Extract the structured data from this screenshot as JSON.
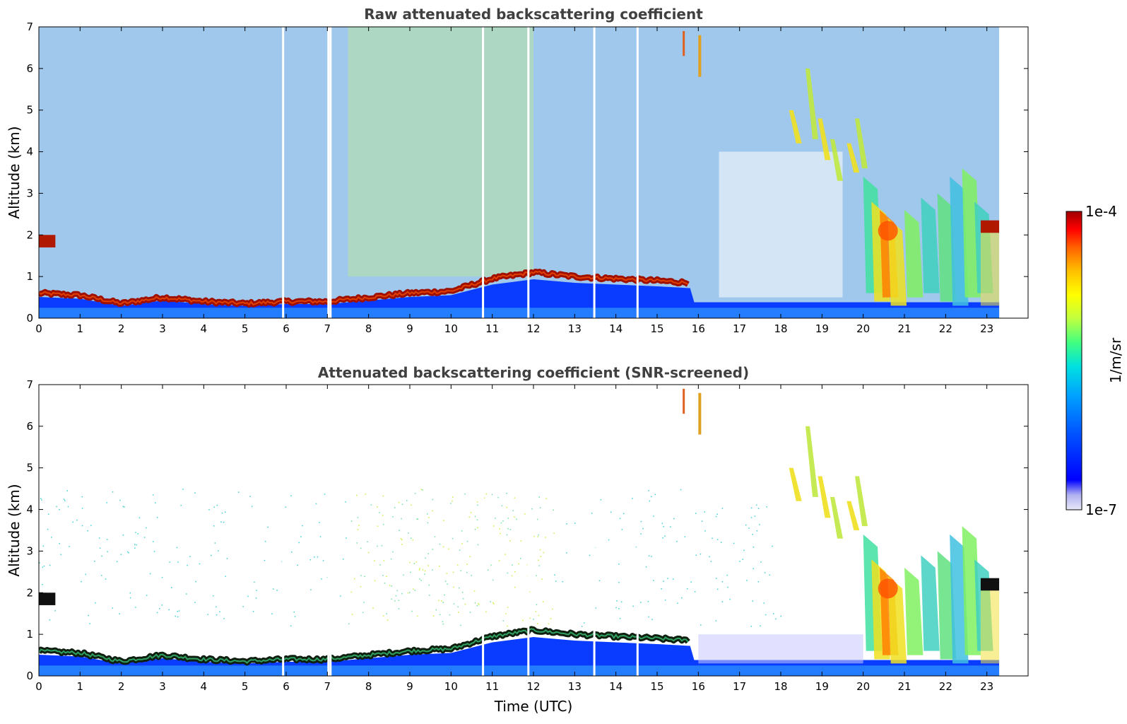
{
  "chart_data": [
    {
      "type": "heatmap",
      "title": "Raw attenuated backscattering coefficient",
      "xlabel": "",
      "ylabel": "Altitude (km)",
      "xlim": [
        0,
        24
      ],
      "ylim": [
        0,
        7
      ],
      "x_ticks": [
        "0",
        "1",
        "2",
        "3",
        "4",
        "5",
        "6",
        "7",
        "8",
        "9",
        "10",
        "11",
        "12",
        "13",
        "14",
        "15",
        "16",
        "17",
        "18",
        "19",
        "20",
        "21",
        "22",
        "23"
      ],
      "y_ticks": [
        "0",
        "1",
        "2",
        "3",
        "4",
        "5",
        "6",
        "7"
      ],
      "data_end_time": 23.3,
      "boundary_layer_top_km": [
        [
          0.0,
          0.6
        ],
        [
          1.0,
          0.55
        ],
        [
          2.0,
          0.35
        ],
        [
          3.0,
          0.5
        ],
        [
          4.0,
          0.4
        ],
        [
          5.0,
          0.35
        ],
        [
          6.0,
          0.4
        ],
        [
          7.0,
          0.4
        ],
        [
          8.0,
          0.5
        ],
        [
          9.0,
          0.6
        ],
        [
          10.0,
          0.65
        ],
        [
          11.0,
          0.95
        ],
        [
          12.0,
          1.1
        ],
        [
          13.0,
          1.0
        ],
        [
          14.0,
          0.95
        ],
        [
          15.0,
          0.9
        ],
        [
          15.8,
          0.85
        ]
      ],
      "cloud_features": [
        {
          "t0": 0.0,
          "t1": 0.4,
          "alt": 1.85
        },
        {
          "t0": 15.6,
          "t1": 16.1,
          "alt": 6.4
        },
        {
          "t0": 18.2,
          "t1": 19.8,
          "alt": 4.5
        },
        {
          "t0": 20.0,
          "t1": 22.8,
          "alt": 2.0
        },
        {
          "t0": 22.8,
          "t1": 23.3,
          "alt": 2.2
        }
      ],
      "screened": false
    },
    {
      "type": "heatmap",
      "title": "Attenuated backscattering coefficient (SNR-screened)",
      "xlabel": "Time (UTC)",
      "ylabel": "Altitude (km)",
      "xlim": [
        0,
        24
      ],
      "ylim": [
        0,
        7
      ],
      "x_ticks": [
        "0",
        "1",
        "2",
        "3",
        "4",
        "5",
        "6",
        "7",
        "8",
        "9",
        "10",
        "11",
        "12",
        "13",
        "14",
        "15",
        "16",
        "17",
        "18",
        "19",
        "20",
        "21",
        "22",
        "23"
      ],
      "y_ticks": [
        "0",
        "1",
        "2",
        "3",
        "4",
        "5",
        "6",
        "7"
      ],
      "data_end_time": 23.3,
      "screened": true
    }
  ],
  "colorbar": {
    "label": "1/m/sr",
    "min_label": "1e-7",
    "max_label": "1e-4",
    "colors": [
      "#e8e8f8",
      "#b0b0f0",
      "#0000ff",
      "#0050ff",
      "#00a0ff",
      "#00e0e0",
      "#40ff80",
      "#c0ff40",
      "#ffff00",
      "#ffc000",
      "#ff6000",
      "#ff0000",
      "#a00000"
    ]
  }
}
